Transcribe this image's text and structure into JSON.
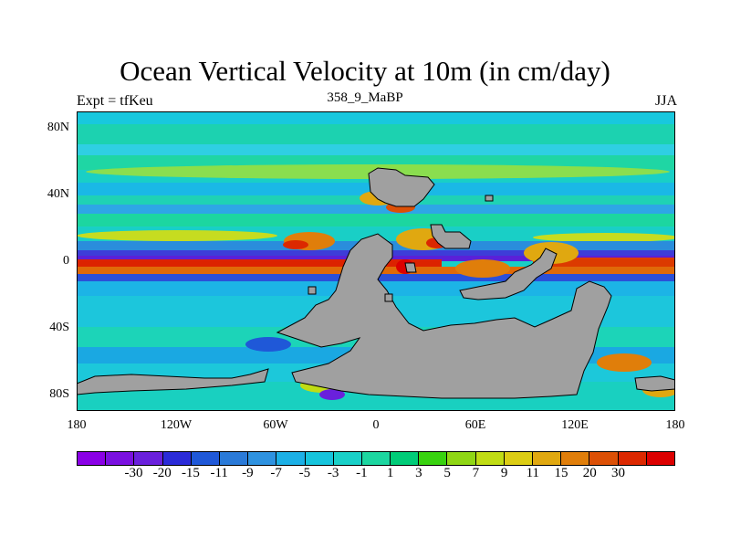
{
  "title": "Ocean Vertical Velocity at 10m (in cm/day)",
  "subtitle_left": "Expt = tfKeu",
  "subtitle_center": "358_9_MaBP",
  "subtitle_right": "JJA",
  "y_ticks": [
    "80N",
    "40N",
    "0",
    "40S",
    "80S"
  ],
  "x_ticks": [
    "180",
    "120W",
    "60W",
    "0",
    "60E",
    "120E",
    "180"
  ],
  "colorbar": {
    "colors": [
      "#8a00e6",
      "#7a10e0",
      "#6a20dc",
      "#2b2bd8",
      "#1f58d8",
      "#2a7ad8",
      "#2e92e0",
      "#1cb0e6",
      "#16c4dc",
      "#19d0c8",
      "#1cd6a0",
      "#00cc78",
      "#38d20f",
      "#8fd614",
      "#c0dc14",
      "#dccd14",
      "#e0a810",
      "#e07e0a",
      "#dc5006",
      "#dc2800",
      "#dc0000"
    ],
    "labels": [
      "-30",
      "-20",
      "-15",
      "-11",
      "-9",
      "-7",
      "-5",
      "-3",
      "-1",
      "1",
      "3",
      "5",
      "7",
      "9",
      "11",
      "15",
      "20",
      "30"
    ]
  },
  "map_colors": {
    "ocean_base": "#19cfc6",
    "land": "#a0a0a0",
    "land_edge": "#000000"
  }
}
